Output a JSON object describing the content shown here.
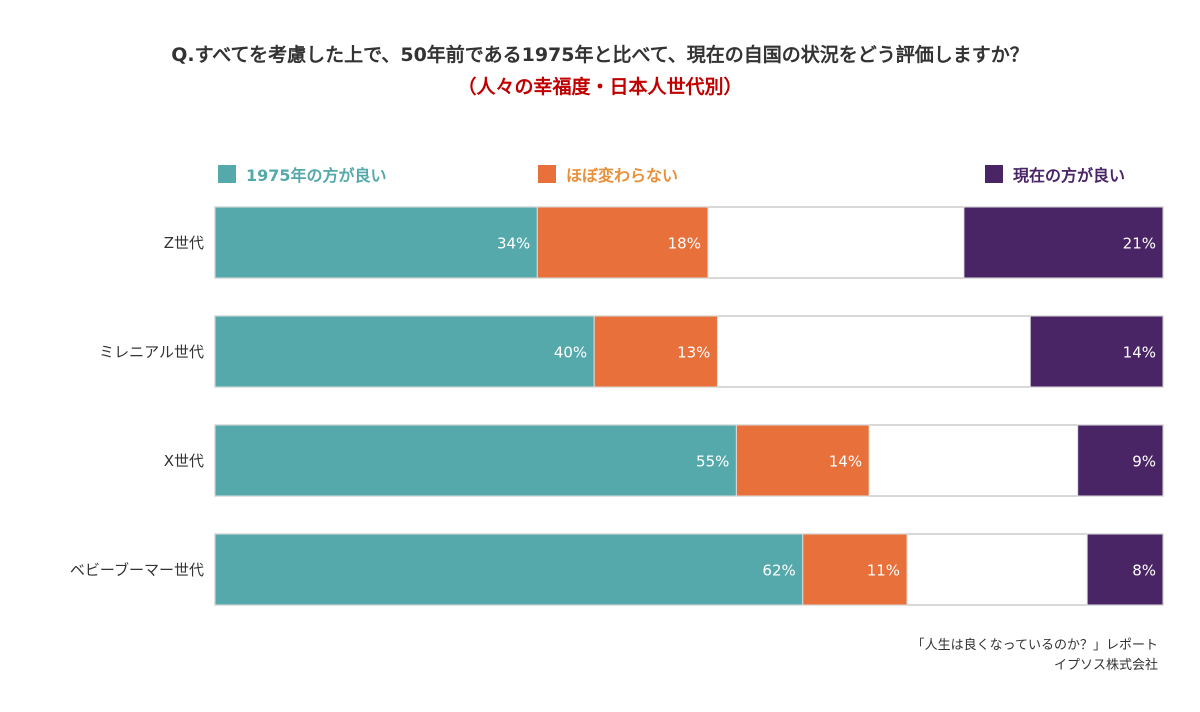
{
  "chart_data": {
    "type": "bar",
    "orientation": "horizontal",
    "stacked": true,
    "title": "Q.すべてを考慮した上で、50年前である1975年と比べて、現在の自国の状況をどう評価しますか？",
    "subtitle": "（人々の幸福度・日本人世代別）",
    "categories": [
      "Z世代",
      "ミレニアル世代",
      "X世代",
      "ベビーブーマー世代"
    ],
    "series": [
      {
        "name": "1975年の方が良い",
        "color": "#55a9ab",
        "values": [
          34,
          40,
          55,
          62
        ],
        "labels": [
          "34%",
          "40%",
          "55%",
          "62%"
        ]
      },
      {
        "name": "ほぼ変わらない",
        "color": "#e8703a",
        "values": [
          18,
          13,
          14,
          11
        ],
        "labels": [
          "18%",
          "13%",
          "14%",
          "11%"
        ]
      },
      {
        "name": "現在の方が良い",
        "color": "#4a2566",
        "values": [
          21,
          14,
          9,
          8
        ],
        "labels": [
          "21%",
          "14%",
          "9%",
          "8%"
        ]
      }
    ],
    "xlim": [
      0,
      100
    ],
    "grid": false,
    "legend": "top",
    "source": [
      "「人生は良くなっているのか？」レポート",
      "イプソス株式会社"
    ]
  }
}
